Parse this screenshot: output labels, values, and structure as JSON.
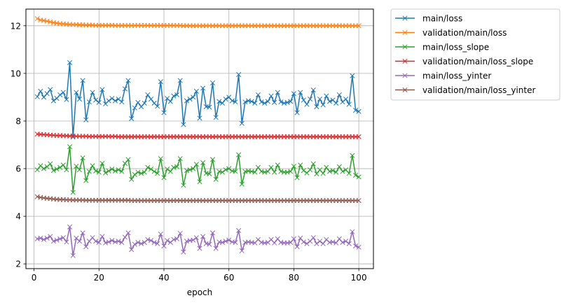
{
  "chart_data": {
    "type": "line",
    "xlabel": "epoch",
    "ylabel": "",
    "xlim": [
      -2.5,
      104.5
    ],
    "ylim": [
      1.8,
      12.7
    ],
    "xticks": [
      0,
      20,
      40,
      60,
      80,
      100
    ],
    "yticks": [
      2,
      4,
      6,
      8,
      10,
      12
    ],
    "grid": true,
    "marker": "x",
    "legend_placement": "outside-top-right",
    "series": [
      {
        "name": "main/loss",
        "color": "#1f77b4",
        "values": [
          9.02,
          9.25,
          9.0,
          9.15,
          9.32,
          8.85,
          8.95,
          9.1,
          9.2,
          8.9,
          10.45,
          7.32,
          9.2,
          8.92,
          9.7,
          8.05,
          8.8,
          9.2,
          8.88,
          8.78,
          9.32,
          8.72,
          8.85,
          8.95,
          8.85,
          8.92,
          8.8,
          9.35,
          9.7,
          8.1,
          8.55,
          8.78,
          8.6,
          8.75,
          9.1,
          8.92,
          8.75,
          8.62,
          9.65,
          8.35,
          8.95,
          8.82,
          9.05,
          9.1,
          9.7,
          7.85,
          8.85,
          8.92,
          9.0,
          9.25,
          8.12,
          9.38,
          8.6,
          8.58,
          9.6,
          8.15,
          8.82,
          8.75,
          8.92,
          9.0,
          8.85,
          8.8,
          9.95,
          7.9,
          8.8,
          8.85,
          8.82,
          8.75,
          9.1,
          8.8,
          8.75,
          8.82,
          9.05,
          8.78,
          9.2,
          8.8,
          8.75,
          8.78,
          8.82,
          9.15,
          8.35,
          9.2,
          8.88,
          8.7,
          8.92,
          9.3,
          8.6,
          8.92,
          8.68,
          9.05,
          8.82,
          8.88,
          8.75,
          9.1,
          8.8,
          8.92,
          8.7,
          9.9,
          8.45,
          8.4
        ]
      },
      {
        "name": "validation/main/loss",
        "color": "#ff7f0e",
        "values": [
          12.3,
          12.24,
          12.22,
          12.19,
          12.16,
          12.13,
          12.11,
          12.09,
          12.08,
          12.07,
          12.06,
          12.05,
          12.05,
          12.04,
          12.04,
          12.03,
          12.03,
          12.03,
          12.02,
          12.02,
          12.02,
          12.02,
          12.02,
          12.02,
          12.01,
          12.01,
          12.01,
          12.01,
          12.01,
          12.01,
          12.01,
          12.01,
          12.01,
          12.01,
          12.01,
          12.01,
          12.01,
          12.01,
          12.01,
          12.01,
          12.01,
          12.01,
          12.01,
          12.01,
          12.01,
          12.0,
          12.0,
          12.0,
          12.0,
          12.0,
          12.0,
          12.0,
          12.0,
          12.0,
          12.0,
          12.0,
          12.0,
          12.0,
          12.0,
          12.0,
          12.0,
          12.0,
          12.0,
          12.0,
          12.0,
          12.0,
          12.0,
          12.0,
          12.0,
          12.0,
          12.0,
          12.0,
          12.0,
          12.0,
          12.0,
          12.0,
          12.0,
          12.0,
          12.0,
          12.0,
          12.0,
          12.0,
          12.0,
          12.0,
          12.0,
          12.0,
          12.0,
          12.0,
          12.0,
          12.0,
          12.0,
          12.0,
          12.0,
          12.0,
          12.0,
          12.0,
          12.0,
          12.0,
          12.0,
          12.0
        ]
      },
      {
        "name": "main/loss_slope",
        "color": "#2ca02c",
        "values": [
          5.95,
          6.12,
          6.0,
          6.08,
          6.2,
          5.92,
          5.98,
          6.05,
          6.15,
          5.95,
          6.92,
          5.0,
          6.1,
          5.95,
          6.45,
          5.5,
          5.88,
          6.12,
          5.9,
          5.85,
          6.22,
          5.82,
          5.9,
          5.98,
          5.9,
          5.95,
          5.88,
          6.22,
          6.38,
          5.55,
          5.75,
          5.85,
          5.8,
          5.85,
          6.05,
          5.98,
          5.88,
          5.8,
          6.42,
          5.62,
          5.98,
          5.88,
          6.05,
          6.08,
          6.42,
          5.3,
          5.92,
          5.95,
          6.0,
          6.18,
          5.45,
          6.25,
          5.8,
          5.78,
          6.38,
          5.55,
          5.88,
          5.85,
          5.95,
          6.0,
          5.9,
          5.88,
          6.58,
          5.35,
          5.88,
          5.9,
          5.88,
          5.85,
          6.05,
          5.88,
          5.85,
          5.88,
          6.05,
          5.85,
          6.15,
          5.88,
          5.85,
          5.85,
          5.88,
          6.1,
          5.62,
          6.15,
          5.92,
          5.82,
          5.95,
          6.2,
          5.78,
          5.95,
          5.8,
          6.05,
          5.88,
          5.92,
          5.85,
          6.08,
          5.88,
          5.95,
          5.8,
          6.55,
          5.72,
          5.65
        ]
      },
      {
        "name": "validation/main/loss_slope",
        "color": "#d62728",
        "values": [
          7.45,
          7.44,
          7.43,
          7.42,
          7.41,
          7.4,
          7.39,
          7.39,
          7.38,
          7.38,
          7.37,
          7.37,
          7.36,
          7.36,
          7.36,
          7.36,
          7.35,
          7.35,
          7.35,
          7.35,
          7.35,
          7.35,
          7.35,
          7.35,
          7.35,
          7.34,
          7.34,
          7.34,
          7.34,
          7.34,
          7.34,
          7.34,
          7.34,
          7.34,
          7.34,
          7.34,
          7.34,
          7.34,
          7.34,
          7.34,
          7.34,
          7.34,
          7.34,
          7.34,
          7.34,
          7.34,
          7.34,
          7.34,
          7.34,
          7.34,
          7.34,
          7.34,
          7.34,
          7.34,
          7.34,
          7.34,
          7.34,
          7.34,
          7.34,
          7.34,
          7.34,
          7.34,
          7.34,
          7.34,
          7.34,
          7.34,
          7.34,
          7.34,
          7.34,
          7.34,
          7.34,
          7.34,
          7.34,
          7.34,
          7.34,
          7.34,
          7.34,
          7.34,
          7.34,
          7.34,
          7.34,
          7.34,
          7.34,
          7.34,
          7.34,
          7.34,
          7.34,
          7.34,
          7.34,
          7.34,
          7.34,
          7.34,
          7.34,
          7.34,
          7.34,
          7.34,
          7.34,
          7.34,
          7.34,
          7.34
        ]
      },
      {
        "name": "main/loss_yinter",
        "color": "#9467bd",
        "values": [
          3.05,
          3.08,
          3.02,
          3.08,
          3.15,
          2.95,
          3.0,
          3.05,
          3.1,
          2.92,
          3.55,
          2.35,
          3.08,
          2.95,
          3.3,
          2.72,
          2.95,
          3.1,
          2.95,
          2.9,
          3.15,
          2.88,
          2.92,
          2.98,
          2.92,
          2.95,
          2.9,
          3.12,
          3.3,
          2.6,
          2.82,
          2.9,
          2.85,
          2.9,
          3.02,
          2.98,
          2.9,
          2.85,
          3.25,
          2.75,
          2.98,
          2.9,
          3.02,
          3.05,
          3.28,
          2.5,
          2.95,
          2.98,
          3.0,
          3.1,
          2.65,
          3.15,
          2.85,
          2.82,
          3.3,
          2.65,
          2.92,
          2.9,
          2.95,
          3.0,
          2.92,
          2.9,
          3.4,
          2.55,
          2.9,
          2.92,
          2.9,
          2.88,
          3.02,
          2.9,
          2.88,
          2.9,
          3.02,
          2.88,
          3.05,
          2.9,
          2.88,
          2.88,
          2.9,
          3.05,
          2.72,
          3.08,
          2.92,
          2.85,
          2.95,
          3.1,
          2.85,
          2.95,
          2.85,
          3.02,
          2.9,
          2.92,
          2.88,
          3.05,
          2.9,
          2.95,
          2.85,
          3.35,
          2.75,
          2.7
        ]
      },
      {
        "name": "validation/main/loss_yinter",
        "color": "#8c564b",
        "values": [
          4.82,
          4.79,
          4.77,
          4.75,
          4.74,
          4.72,
          4.71,
          4.7,
          4.7,
          4.69,
          4.69,
          4.68,
          4.68,
          4.68,
          4.68,
          4.67,
          4.67,
          4.67,
          4.67,
          4.67,
          4.67,
          4.67,
          4.67,
          4.67,
          4.67,
          4.67,
          4.67,
          4.67,
          4.67,
          4.66,
          4.66,
          4.66,
          4.66,
          4.66,
          4.66,
          4.66,
          4.66,
          4.66,
          4.66,
          4.66,
          4.66,
          4.66,
          4.66,
          4.66,
          4.66,
          4.66,
          4.66,
          4.66,
          4.66,
          4.66,
          4.66,
          4.66,
          4.66,
          4.66,
          4.66,
          4.66,
          4.66,
          4.66,
          4.66,
          4.66,
          4.66,
          4.66,
          4.66,
          4.66,
          4.66,
          4.66,
          4.66,
          4.66,
          4.66,
          4.66,
          4.66,
          4.66,
          4.66,
          4.66,
          4.66,
          4.66,
          4.66,
          4.66,
          4.66,
          4.66,
          4.66,
          4.66,
          4.66,
          4.66,
          4.66,
          4.66,
          4.66,
          4.66,
          4.66,
          4.66,
          4.66,
          4.66,
          4.66,
          4.66,
          4.66,
          4.66,
          4.66,
          4.66,
          4.66,
          4.66
        ]
      }
    ]
  }
}
